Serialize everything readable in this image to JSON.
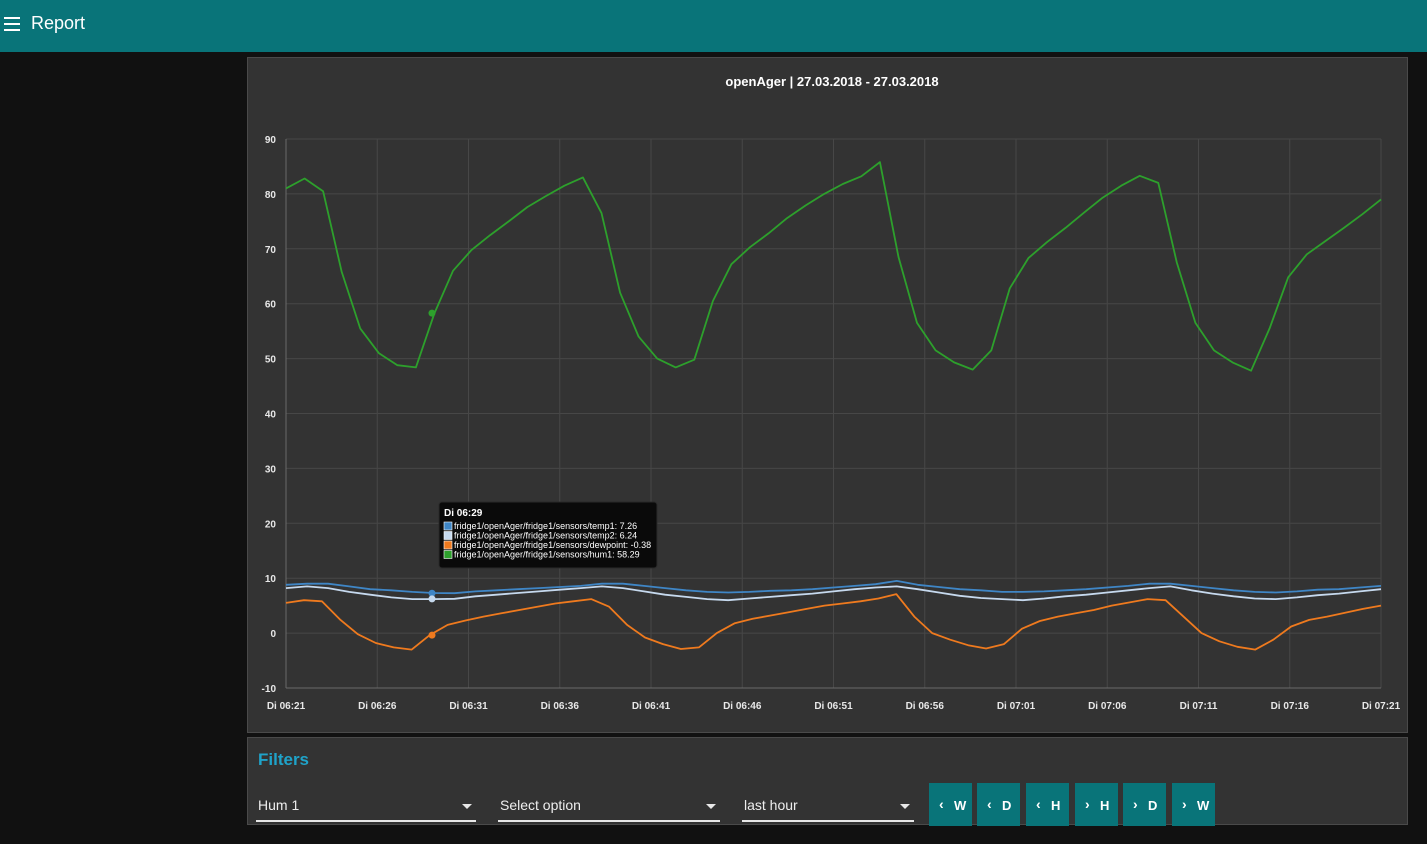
{
  "header": {
    "title": "Report"
  },
  "chart_data": {
    "type": "line",
    "title": "openAger | 27.03.2018 - 27.03.2018",
    "ylim": [
      -10,
      90
    ],
    "yticks": [
      -10,
      0,
      10,
      20,
      30,
      40,
      50,
      60,
      70,
      80,
      90
    ],
    "xticks": [
      "Di 06:21",
      "Di 06:26",
      "Di 06:31",
      "Di 06:36",
      "Di 06:41",
      "Di 06:46",
      "Di 06:51",
      "Di 06:56",
      "Di 07:01",
      "Di 07:06",
      "Di 07:11",
      "Di 07:16",
      "Di 07:21"
    ],
    "x_start": "06:21",
    "x_end": "07:21",
    "grid": true,
    "series": [
      {
        "name": "fridge1/openAger/fridge1/sensors/temp1",
        "color": "#3f86c6",
        "values": [
          8.8,
          9.0,
          9.0,
          8.5,
          8.0,
          7.8,
          7.5,
          7.3,
          7.26,
          7.6,
          7.8,
          8.0,
          8.2,
          8.4,
          8.6,
          9.0,
          9.0,
          8.6,
          8.2,
          7.8,
          7.5,
          7.4,
          7.5,
          7.7,
          7.8,
          8.0,
          8.3,
          8.6,
          8.9,
          9.5,
          8.8,
          8.4,
          8.0,
          7.8,
          7.5,
          7.5,
          7.6,
          7.8,
          8.0,
          8.3,
          8.6,
          9.0,
          9.0,
          8.6,
          8.2,
          7.8,
          7.5,
          7.4,
          7.6,
          7.9,
          8.0,
          8.3,
          8.6
        ]
      },
      {
        "name": "fridge1/openAger/fridge1/sensors/temp2",
        "color": "#c6d9ee",
        "values": [
          8.2,
          8.5,
          8.2,
          7.5,
          7.0,
          6.5,
          6.2,
          6.2,
          6.24,
          6.7,
          7.0,
          7.3,
          7.6,
          7.9,
          8.2,
          8.5,
          8.2,
          7.6,
          7.0,
          6.6,
          6.2,
          6.0,
          6.3,
          6.6,
          6.9,
          7.2,
          7.6,
          8.0,
          8.3,
          8.5,
          8.0,
          7.4,
          6.8,
          6.4,
          6.2,
          6.0,
          6.3,
          6.7,
          7.0,
          7.4,
          7.8,
          8.2,
          8.5,
          7.8,
          7.2,
          6.7,
          6.3,
          6.2,
          6.5,
          6.9,
          7.2,
          7.6,
          8.0
        ]
      },
      {
        "name": "fridge1/openAger/fridge1/sensors/dewpoint",
        "color": "#ef7a1e",
        "values": [
          5.5,
          6.0,
          5.8,
          2.5,
          -0.2,
          -1.8,
          -2.6,
          -3.0,
          -0.38,
          1.5,
          2.3,
          3.0,
          3.6,
          4.2,
          4.8,
          5.4,
          5.8,
          6.2,
          4.8,
          1.5,
          -0.8,
          -2.0,
          -2.9,
          -2.6,
          0.0,
          1.8,
          2.6,
          3.2,
          3.8,
          4.4,
          5.0,
          5.4,
          5.8,
          6.3,
          7.1,
          3.0,
          0.0,
          -1.2,
          -2.2,
          -2.8,
          -2.0,
          0.8,
          2.2,
          3.0,
          3.6,
          4.2,
          5.0,
          5.6,
          6.2,
          6.0,
          3.0,
          0.0,
          -1.5,
          -2.5,
          -3.0,
          -1.2,
          1.2,
          2.4,
          3.0,
          3.7,
          4.4,
          5.0
        ]
      },
      {
        "name": "fridge1/openAger/fridge1/sensors/hum1",
        "color": "#2da02c",
        "values": [
          81.0,
          82.8,
          80.5,
          65.8,
          55.5,
          51.0,
          48.8,
          48.4,
          58.29,
          66.0,
          69.8,
          72.5,
          75.0,
          77.6,
          79.6,
          81.5,
          83.0,
          76.5,
          62.0,
          54.0,
          50.0,
          48.4,
          49.8,
          60.5,
          67.2,
          70.3,
          72.8,
          75.6,
          77.9,
          80.0,
          81.8,
          83.2,
          85.8,
          68.5,
          56.5,
          51.5,
          49.3,
          48.0,
          51.5,
          62.8,
          68.3,
          71.2,
          73.8,
          76.6,
          79.3,
          81.5,
          83.3,
          82.0,
          67.5,
          56.5,
          51.5,
          49.3,
          47.8,
          55.5,
          64.8,
          69.0,
          71.4,
          73.8,
          76.3,
          79.0
        ]
      }
    ],
    "tooltip": {
      "time": "Di 06:29",
      "lines": [
        "fridge1/openAger/fridge1/sensors/temp1: 7.26",
        "fridge1/openAger/fridge1/sensors/temp2: 6.24",
        "fridge1/openAger/fridge1/sensors/dewpoint: -0.38",
        "fridge1/openAger/fridge1/sensors/hum1: 58.29"
      ],
      "colors": [
        "#3f86c6",
        "#c6d9ee",
        "#ef7a1e",
        "#2da02c"
      ],
      "values": [
        7.26,
        6.24,
        -0.38,
        58.29
      ]
    }
  },
  "filters": {
    "title": "Filters",
    "sensor_select": "Hum 1",
    "option_select": "Select option",
    "range_select": "last hour",
    "buttons": [
      {
        "arrow": "‹",
        "label": "W"
      },
      {
        "arrow": "‹",
        "label": "D"
      },
      {
        "arrow": "‹",
        "label": "H"
      },
      {
        "arrow": "›",
        "label": "H"
      },
      {
        "arrow": "›",
        "label": "D"
      },
      {
        "arrow": "›",
        "label": "W"
      }
    ]
  }
}
